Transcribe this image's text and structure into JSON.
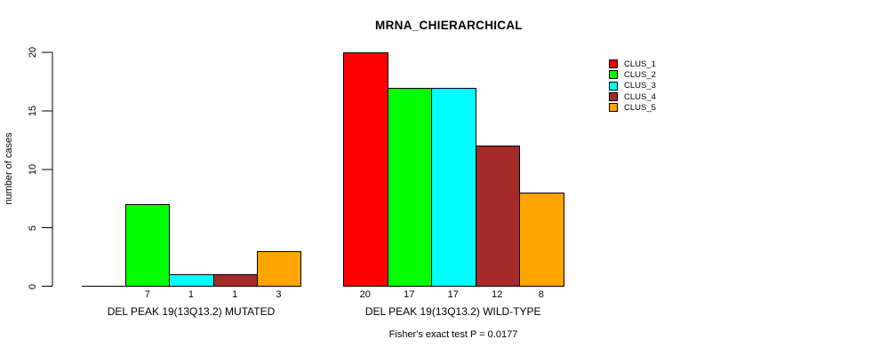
{
  "chart_data": {
    "type": "bar",
    "title": "MRNA_CHIERARCHICAL",
    "ylabel": "number of cases",
    "xlabel": "",
    "ylim": [
      0,
      20
    ],
    "yticks": [
      0,
      5,
      10,
      15,
      20
    ],
    "grid": false,
    "legend_position": "right",
    "categories": [
      "DEL PEAK 19(13Q13.2) MUTATED",
      "DEL PEAK 19(13Q13.2) WILD-TYPE"
    ],
    "series": [
      {
        "name": "CLUS_1",
        "color": "#FF0000",
        "values": [
          0,
          20
        ]
      },
      {
        "name": "CLUS_2",
        "color": "#00FF00",
        "values": [
          7,
          17
        ]
      },
      {
        "name": "CLUS_3",
        "color": "#00FFFF",
        "values": [
          1,
          17
        ]
      },
      {
        "name": "CLUS_4",
        "color": "#A52A2A",
        "values": [
          1,
          12
        ]
      },
      {
        "name": "CLUS_5",
        "color": "#FFA500",
        "values": [
          3,
          8
        ]
      }
    ],
    "bar_value_labels": [
      [
        "",
        "7",
        "1",
        "1",
        "3"
      ],
      [
        "20",
        "17",
        "17",
        "12",
        "8"
      ]
    ],
    "footer": "Fisher's exact test P = 0.0177",
    "axis_color": "#000000",
    "background_color": "#FFFFFF"
  }
}
